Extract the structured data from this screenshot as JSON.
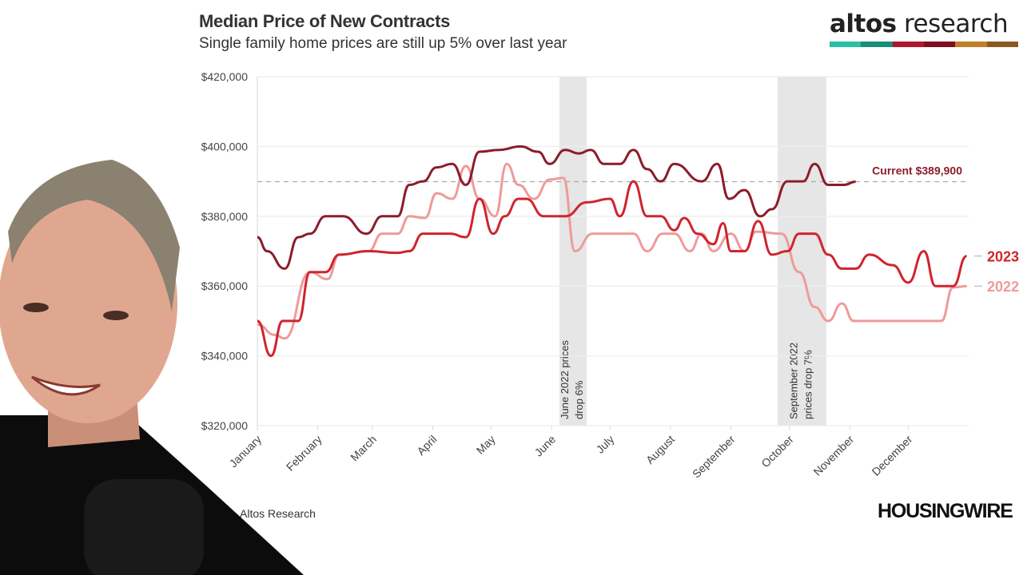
{
  "header": {
    "title": "Median Price of New Contracts",
    "subtitle": "Single family home prices are still up 5% over last year"
  },
  "logo": {
    "text_bold": "altos",
    "text_light": " research",
    "stripe_colors": [
      "#2bbfa6",
      "#1a8f78",
      "#b0162d",
      "#7d0e1f",
      "#c07f2a",
      "#8a5a20"
    ]
  },
  "footer": {
    "source": "Altos Research",
    "publisher": "HOUSINGWIRE"
  },
  "colors": {
    "dark": "#8c1c2a",
    "y2023": "#d0242e",
    "y2022": "#ef9a9a",
    "band": "#e6e6e6",
    "grid": "#eeeeee"
  },
  "chart_data": {
    "type": "line",
    "title": "Median Price of New Contracts",
    "subtitle": "Single family home prices are still up 5% over last year",
    "ylim": [
      320000,
      420000
    ],
    "yticks": [
      "$320,000",
      "$340,000",
      "$360,000",
      "$380,000",
      "$400,000",
      "$420,000"
    ],
    "ytick_values": [
      320000,
      340000,
      360000,
      380000,
      400000,
      420000
    ],
    "xticks": [
      "January",
      "February",
      "March",
      "April",
      "May",
      "June",
      "July",
      "August",
      "September",
      "October",
      "November",
      "December"
    ],
    "grid": true,
    "series": [
      {
        "name": "",
        "color": "#8c1c2a",
        "points": [
          [
            "01-01",
            374000
          ],
          [
            "01-06",
            370000
          ],
          [
            "01-15",
            365000
          ],
          [
            "01-22",
            374000
          ],
          [
            "01-28",
            375000
          ],
          [
            "02-05",
            380000
          ],
          [
            "02-14",
            380000
          ],
          [
            "02-26",
            375000
          ],
          [
            "03-06",
            380000
          ],
          [
            "03-14",
            380000
          ],
          [
            "03-20",
            389000
          ],
          [
            "03-27",
            390000
          ],
          [
            "04-03",
            394000
          ],
          [
            "04-11",
            395000
          ],
          [
            "04-18",
            389000
          ],
          [
            "04-25",
            398500
          ],
          [
            "05-05",
            399000
          ],
          [
            "05-16",
            400000
          ],
          [
            "05-25",
            398500
          ],
          [
            "05-31",
            395000
          ],
          [
            "06-08",
            399000
          ],
          [
            "06-15",
            398000
          ],
          [
            "06-21",
            399000
          ],
          [
            "06-28",
            395000
          ],
          [
            "07-06",
            395000
          ],
          [
            "07-13",
            399000
          ],
          [
            "07-20",
            393500
          ],
          [
            "07-27",
            390000
          ],
          [
            "08-03",
            395000
          ],
          [
            "08-17",
            390000
          ],
          [
            "08-25",
            395000
          ],
          [
            "08-31",
            385000
          ],
          [
            "09-08",
            387500
          ],
          [
            "09-16",
            380000
          ],
          [
            "09-22",
            382000
          ],
          [
            "09-30",
            390000
          ],
          [
            "10-08",
            390000
          ],
          [
            "10-14",
            395000
          ],
          [
            "10-21",
            389000
          ],
          [
            "10-29",
            389000
          ],
          [
            "11-04",
            389900
          ]
        ]
      },
      {
        "name": "2023",
        "color": "#d0242e",
        "points": [
          [
            "01-01",
            350000
          ],
          [
            "01-08",
            340000
          ],
          [
            "01-14",
            350000
          ],
          [
            "01-22",
            350000
          ],
          [
            "01-28",
            364000
          ],
          [
            "02-05",
            364000
          ],
          [
            "02-12",
            369000
          ],
          [
            "02-27",
            370000
          ],
          [
            "03-14",
            369500
          ],
          [
            "03-20",
            370000
          ],
          [
            "03-27",
            375000
          ],
          [
            "04-10",
            375000
          ],
          [
            "04-18",
            374000
          ],
          [
            "04-25",
            385000
          ],
          [
            "05-02",
            375000
          ],
          [
            "05-08",
            380000
          ],
          [
            "05-15",
            385000
          ],
          [
            "05-19",
            385000
          ],
          [
            "05-28",
            380000
          ],
          [
            "06-08",
            380000
          ],
          [
            "06-19",
            384000
          ],
          [
            "07-01",
            385000
          ],
          [
            "07-06",
            380000
          ],
          [
            "07-13",
            390000
          ],
          [
            "07-20",
            380000
          ],
          [
            "07-27",
            380000
          ],
          [
            "08-03",
            376000
          ],
          [
            "08-08",
            379500
          ],
          [
            "08-15",
            375000
          ],
          [
            "08-23",
            372000
          ],
          [
            "08-28",
            378000
          ],
          [
            "09-01",
            370000
          ],
          [
            "09-08",
            370000
          ],
          [
            "09-15",
            378600
          ],
          [
            "09-22",
            369000
          ],
          [
            "09-30",
            370000
          ],
          [
            "10-06",
            375000
          ],
          [
            "10-14",
            375000
          ],
          [
            "10-21",
            369000
          ],
          [
            "10-28",
            365000
          ],
          [
            "11-04",
            365000
          ],
          [
            "11-11",
            369000
          ],
          [
            "11-23",
            366000
          ],
          [
            "12-01",
            361000
          ],
          [
            "12-09",
            370000
          ],
          [
            "12-15",
            360000
          ],
          [
            "12-24",
            360000
          ],
          [
            "12-31",
            368600
          ]
        ]
      },
      {
        "name": "2022",
        "color": "#ef9a9a",
        "points": [
          [
            "01-01",
            349000
          ],
          [
            "01-10",
            346000
          ],
          [
            "01-15",
            345000
          ],
          [
            "01-28",
            364000
          ],
          [
            "02-06",
            362000
          ],
          [
            "02-12",
            369000
          ],
          [
            "02-27",
            370000
          ],
          [
            "03-06",
            375000
          ],
          [
            "03-14",
            375000
          ],
          [
            "03-20",
            380000
          ],
          [
            "03-28",
            379500
          ],
          [
            "04-03",
            386600
          ],
          [
            "04-11",
            385000
          ],
          [
            "04-18",
            394400
          ],
          [
            "04-25",
            385000
          ],
          [
            "05-03",
            380000
          ],
          [
            "05-09",
            395000
          ],
          [
            "05-15",
            389000
          ],
          [
            "05-23",
            385000
          ],
          [
            "05-31",
            390500
          ],
          [
            "06-07",
            391000
          ],
          [
            "06-13",
            370000
          ],
          [
            "06-22",
            375000
          ],
          [
            "07-01",
            375000
          ],
          [
            "07-13",
            375000
          ],
          [
            "07-20",
            370000
          ],
          [
            "07-28",
            375000
          ],
          [
            "08-03",
            375000
          ],
          [
            "08-11",
            370000
          ],
          [
            "08-17",
            375000
          ],
          [
            "08-23",
            370000
          ],
          [
            "09-01",
            375000
          ],
          [
            "09-08",
            370000
          ],
          [
            "09-14",
            375600
          ],
          [
            "09-27",
            375000
          ],
          [
            "10-06",
            364000
          ],
          [
            "10-14",
            354000
          ],
          [
            "10-21",
            350000
          ],
          [
            "10-28",
            355000
          ],
          [
            "11-03",
            350000
          ],
          [
            "11-23",
            350000
          ],
          [
            "12-18",
            350000
          ],
          [
            "12-24",
            359600
          ],
          [
            "12-31",
            360000
          ]
        ]
      }
    ],
    "reference_line": {
      "value": 389900,
      "label": "Current $389,900",
      "style": "dashed"
    },
    "bands": [
      {
        "start": "06-05",
        "end": "06-19",
        "label_lines": [
          "June 2022 prices",
          "drop 6%"
        ]
      },
      {
        "start": "09-25",
        "end": "10-20",
        "label_lines": [
          "September 2022",
          "prices drop 7%"
        ]
      }
    ]
  }
}
